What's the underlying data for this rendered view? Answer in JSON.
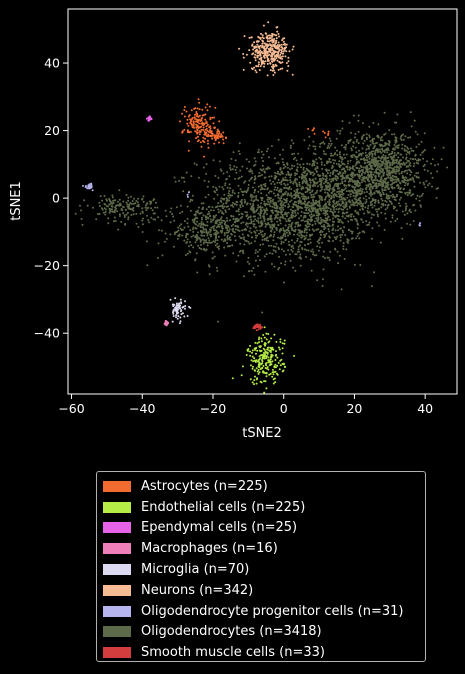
{
  "chart_data": {
    "type": "scatter",
    "title": "",
    "xlabel": "tSNE2",
    "ylabel": "tSNE1",
    "xlim": [
      -61,
      49
    ],
    "ylim": [
      -58,
      56
    ],
    "xticks": [
      -60,
      -40,
      -20,
      0,
      20,
      40
    ],
    "yticks": [
      -40,
      -20,
      0,
      20,
      40
    ],
    "xtick_labels": [
      "−60",
      "−40",
      "−20",
      "0",
      "20",
      "40"
    ],
    "ytick_labels": [
      "−40",
      "−20",
      "0",
      "20",
      "40"
    ],
    "grid": false,
    "legend_position": "below",
    "series": [
      {
        "name": "Astrocytes (n=225)",
        "color": "#f26b30",
        "n": 225,
        "clusters": [
          {
            "cx": -24,
            "cy": 22,
            "sx": 2.2,
            "sy": 3.0,
            "w": 0.7
          },
          {
            "cx": -19,
            "cy": 18.5,
            "sx": 1.6,
            "sy": 1.3,
            "w": 0.25
          },
          {
            "cx": 10,
            "cy": 19.5,
            "sx": 1.4,
            "sy": 0.9,
            "w": 0.05
          }
        ]
      },
      {
        "name": "Endothelial cells (n=225)",
        "color": "#b5ec45",
        "n": 225,
        "clusters": [
          {
            "cx": -5,
            "cy": -48,
            "sx": 2.6,
            "sy": 3.6,
            "w": 1.0
          }
        ]
      },
      {
        "name": "Ependymal cells (n=25)",
        "color": "#e762e7",
        "n": 25,
        "clusters": [
          {
            "cx": -38,
            "cy": 23.5,
            "sx": 0.3,
            "sy": 0.3,
            "w": 1.0
          }
        ]
      },
      {
        "name": "Macrophages (n=16)",
        "color": "#ef7fb8",
        "n": 16,
        "clusters": [
          {
            "cx": -33,
            "cy": -37,
            "sx": 0.3,
            "sy": 0.4,
            "w": 1.0
          }
        ]
      },
      {
        "name": "Microglia (n=70)",
        "color": "#dcdaf0",
        "n": 70,
        "clusters": [
          {
            "cx": -30,
            "cy": -33,
            "sx": 1.1,
            "sy": 1.4,
            "w": 1.0
          }
        ]
      },
      {
        "name": "Neurons (n=342)",
        "color": "#f7bc94",
        "n": 342,
        "clusters": [
          {
            "cx": -4,
            "cy": 43.5,
            "sx": 2.8,
            "sy": 2.8,
            "w": 1.0
          }
        ]
      },
      {
        "name": "Oligodendrocyte progenitor cells (n=31)",
        "color": "#b7b5ef",
        "n": 31,
        "clusters": [
          {
            "cx": -55,
            "cy": 3.5,
            "sx": 0.6,
            "sy": 0.4,
            "w": 0.8
          },
          {
            "cx": -27,
            "cy": 1,
            "sx": 0.2,
            "sy": 0.5,
            "w": 0.1
          },
          {
            "cx": 38.5,
            "cy": -8,
            "sx": 0.1,
            "sy": 0.6,
            "w": 0.1
          }
        ]
      },
      {
        "name": "Oligodendrocytes (n=3418)",
        "color": "#5e6b4a",
        "n": 3418,
        "clusters": [
          {
            "cx": 0,
            "cy": -3,
            "sx": 12,
            "sy": 8,
            "w": 0.45
          },
          {
            "cx": 28,
            "cy": 8,
            "sx": 6,
            "sy": 6,
            "w": 0.28
          },
          {
            "cx": 14,
            "cy": 2,
            "sx": 7,
            "sy": 7,
            "w": 0.15
          },
          {
            "cx": -22,
            "cy": -10,
            "sx": 5,
            "sy": 3,
            "w": 0.07
          },
          {
            "cx": -45,
            "cy": -3,
            "sx": 5,
            "sy": 2,
            "w": 0.05
          }
        ]
      },
      {
        "name": "Smooth muscle cells (n=33)",
        "color": "#d43d3d",
        "n": 33,
        "clusters": [
          {
            "cx": -7,
            "cy": -38,
            "sx": 0.7,
            "sy": 0.4,
            "w": 1.0
          }
        ]
      }
    ]
  }
}
